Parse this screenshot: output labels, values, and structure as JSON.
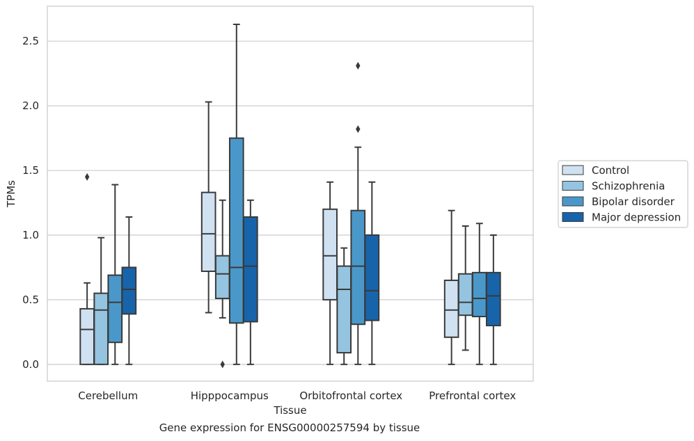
{
  "caption": "Gene expression for ENSG00000257594 by tissue",
  "chart_data": {
    "type": "boxplot",
    "title": "",
    "xlabel": "Tissue",
    "ylabel": "TPMs",
    "categories": [
      "Cerebellum",
      "Hipppocampus",
      "Orbitofrontal cortex",
      "Prefrontal cortex"
    ],
    "ylim": [
      -0.13,
      2.77
    ],
    "yticks": [
      "0.0",
      "0.5",
      "1.0",
      "1.5",
      "2.0",
      "2.5"
    ],
    "grid": true,
    "legend_position": "right",
    "series": [
      {
        "name": "Control",
        "color": "#d0e1f2",
        "boxes": [
          {
            "whisker_low": 0.0,
            "q1": 0.0,
            "median": 0.27,
            "q3": 0.43,
            "whisker_high": 0.63,
            "outliers": [
              1.45
            ]
          },
          {
            "whisker_low": 0.4,
            "q1": 0.72,
            "median": 1.01,
            "q3": 1.33,
            "whisker_high": 2.03,
            "outliers": []
          },
          {
            "whisker_low": 0.0,
            "q1": 0.5,
            "median": 0.84,
            "q3": 1.2,
            "whisker_high": 1.41,
            "outliers": []
          },
          {
            "whisker_low": 0.0,
            "q1": 0.21,
            "median": 0.42,
            "q3": 0.65,
            "whisker_high": 1.19,
            "outliers": []
          }
        ]
      },
      {
        "name": "Schizophrenia",
        "color": "#94c4df",
        "boxes": [
          {
            "whisker_low": 0.0,
            "q1": 0.0,
            "median": 0.42,
            "q3": 0.55,
            "whisker_high": 0.98,
            "outliers": []
          },
          {
            "whisker_low": 0.36,
            "q1": 0.51,
            "median": 0.7,
            "q3": 0.84,
            "whisker_high": 1.27,
            "outliers": [
              0.0
            ]
          },
          {
            "whisker_low": 0.0,
            "q1": 0.09,
            "median": 0.58,
            "q3": 0.76,
            "whisker_high": 0.9,
            "outliers": []
          },
          {
            "whisker_low": 0.11,
            "q1": 0.38,
            "median": 0.48,
            "q3": 0.7,
            "whisker_high": 1.07,
            "outliers": []
          }
        ]
      },
      {
        "name": "Bipolar disorder",
        "color": "#4a98c9",
        "boxes": [
          {
            "whisker_low": 0.0,
            "q1": 0.17,
            "median": 0.48,
            "q3": 0.69,
            "whisker_high": 1.39,
            "outliers": []
          },
          {
            "whisker_low": 0.0,
            "q1": 0.32,
            "median": 0.75,
            "q3": 1.75,
            "whisker_high": 2.63,
            "outliers": []
          },
          {
            "whisker_low": 0.0,
            "q1": 0.31,
            "median": 0.76,
            "q3": 1.19,
            "whisker_high": 1.68,
            "outliers": [
              1.82,
              2.31
            ]
          },
          {
            "whisker_low": 0.0,
            "q1": 0.37,
            "median": 0.51,
            "q3": 0.71,
            "whisker_high": 1.09,
            "outliers": []
          }
        ]
      },
      {
        "name": "Major depression",
        "color": "#1764ab",
        "boxes": [
          {
            "whisker_low": 0.0,
            "q1": 0.39,
            "median": 0.58,
            "q3": 0.75,
            "whisker_high": 1.14,
            "outliers": []
          },
          {
            "whisker_low": 0.0,
            "q1": 0.33,
            "median": 0.76,
            "q3": 1.14,
            "whisker_high": 1.27,
            "outliers": []
          },
          {
            "whisker_low": 0.0,
            "q1": 0.34,
            "median": 0.57,
            "q3": 1.0,
            "whisker_high": 1.41,
            "outliers": []
          },
          {
            "whisker_low": 0.0,
            "q1": 0.3,
            "median": 0.53,
            "q3": 0.71,
            "whisker_high": 1.0,
            "outliers": []
          }
        ]
      }
    ]
  }
}
